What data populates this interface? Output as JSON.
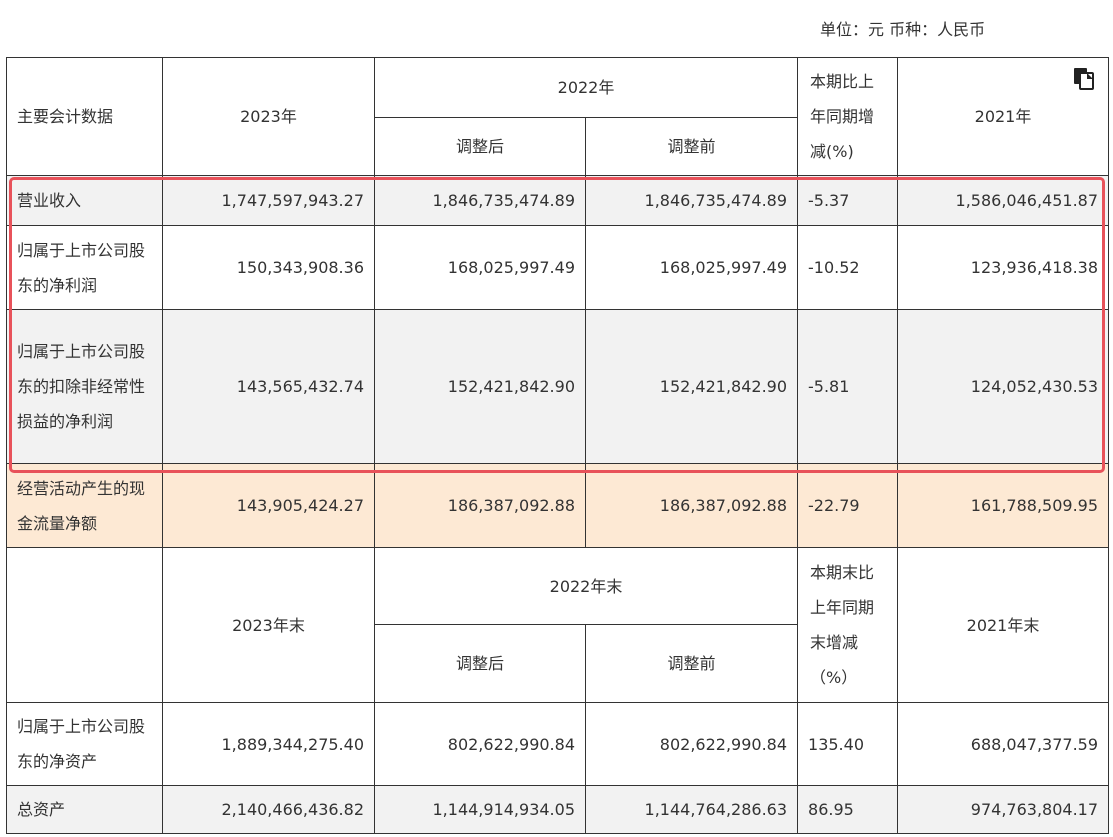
{
  "unit_line": "单位：元  币种：人民币",
  "icons": {
    "copy": "copy-icon"
  },
  "colors": {
    "highlight": "#e8525a",
    "orange_row": "#fde9d4",
    "gray_row": "#f2f2f2"
  },
  "header1": {
    "label": "主要会计数据",
    "y2023": "2023年",
    "y2022": "2022年",
    "adjusted_after": "调整后",
    "adjusted_before": "调整前",
    "change": "本期比上年同期增减(%)",
    "y2021": "2021年"
  },
  "income_rows": [
    {
      "label": "营业收入",
      "v2023": "1,747,597,943.27",
      "v2022_after": "1,846,735,474.89",
      "v2022_before": "1,846,735,474.89",
      "change": "-5.37",
      "v2021": "1,586,046,451.87"
    },
    {
      "label": "归属于上市公司股东的净利润",
      "v2023": "150,343,908.36",
      "v2022_after": "168,025,997.49",
      "v2022_before": "168,025,997.49",
      "change": "-10.52",
      "v2021": "123,936,418.38"
    },
    {
      "label": "归属于上市公司股东的扣除非经常性损益的净利润",
      "v2023": "143,565,432.74",
      "v2022_after": "152,421,842.90",
      "v2022_before": "152,421,842.90",
      "change": "-5.81",
      "v2021": "124,052,430.53"
    },
    {
      "label": "经营活动产生的现金流量净额",
      "v2023": "143,905,424.27",
      "v2022_after": "186,387,092.88",
      "v2022_before": "186,387,092.88",
      "change": "-22.79",
      "v2021": "161,788,509.95"
    }
  ],
  "header2": {
    "label": "",
    "y2023": "2023年末",
    "y2022": "2022年末",
    "adjusted_after": "调整后",
    "adjusted_before": "调整前",
    "change": "本期末比上年同期末增减（%）",
    "y2021": "2021年末"
  },
  "balance_rows": [
    {
      "label": "归属于上市公司股东的净资产",
      "v2023": "1,889,344,275.40",
      "v2022_after": "802,622,990.84",
      "v2022_before": "802,622,990.84",
      "change": "135.40",
      "v2021": "688,047,377.59"
    },
    {
      "label": "总资产",
      "v2023": "2,140,466,436.82",
      "v2022_after": "1,144,914,934.05",
      "v2022_before": "1,144,764,286.63",
      "change": "86.95",
      "v2021": "974,763,804.17"
    }
  ]
}
